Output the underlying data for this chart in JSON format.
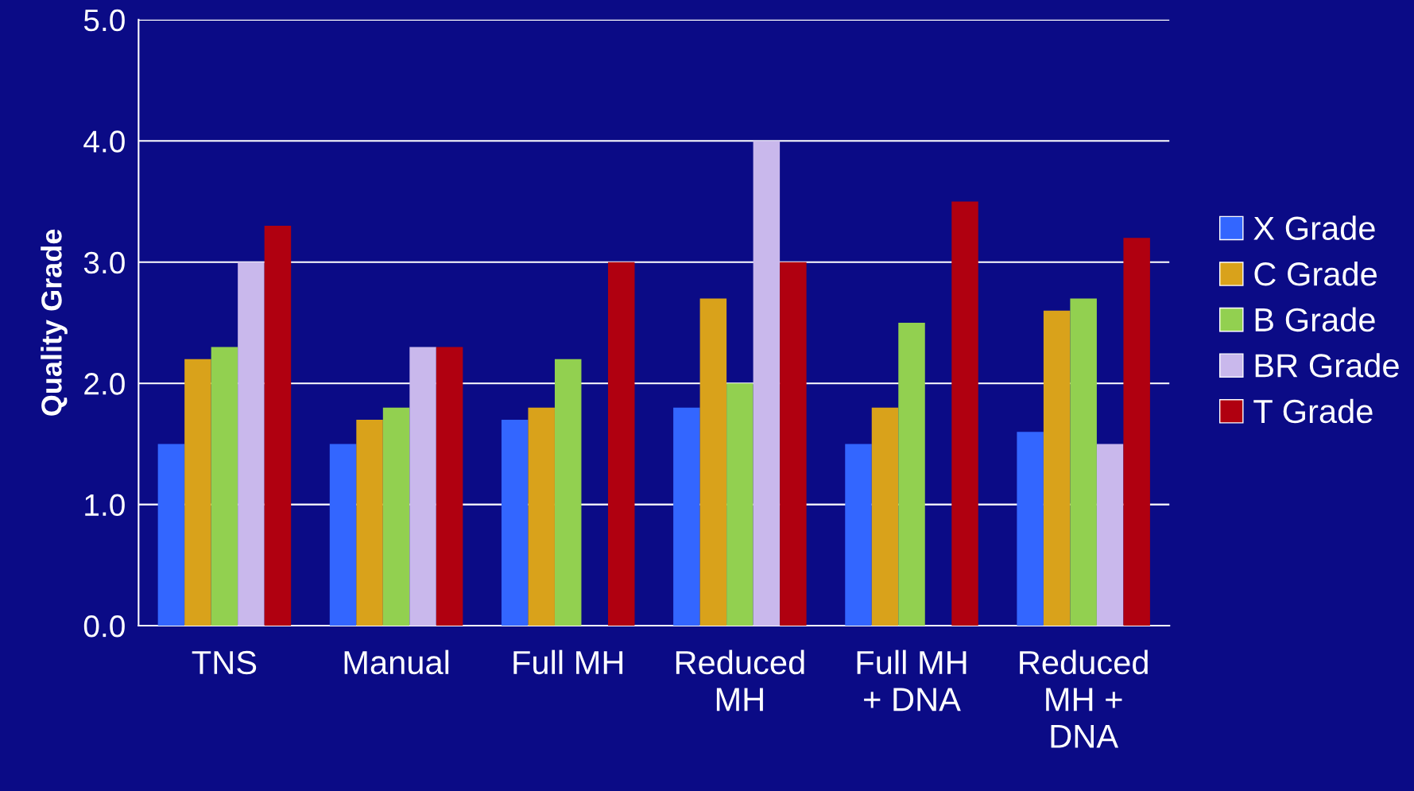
{
  "chart_data": {
    "type": "bar",
    "ylabel": "Quality Grade",
    "categories": [
      "TNS",
      "Manual",
      "Full MH",
      "Reduced\nMH",
      "Full MH\n+ DNA",
      "Reduced\nMH +\nDNA"
    ],
    "series": [
      {
        "name": "X Grade",
        "color": "#3366ff",
        "values": [
          1.5,
          1.5,
          1.7,
          1.8,
          1.5,
          1.6
        ]
      },
      {
        "name": "C Grade",
        "color": "#d9a21b",
        "values": [
          2.2,
          1.7,
          1.8,
          2.7,
          1.8,
          2.6
        ]
      },
      {
        "name": "B Grade",
        "color": "#92d050",
        "values": [
          2.3,
          1.8,
          2.2,
          2.0,
          2.5,
          2.7
        ]
      },
      {
        "name": "BR Grade",
        "color": "#c9b8ec",
        "values": [
          3.0,
          2.3,
          null,
          4.0,
          null,
          1.5
        ]
      },
      {
        "name": "T Grade",
        "color": "#b00010",
        "values": [
          3.3,
          2.3,
          3.0,
          3.0,
          3.5,
          3.2
        ]
      }
    ],
    "ylim": [
      0,
      5
    ],
    "yticks": [
      {
        "value": 0,
        "label": "0.0"
      },
      {
        "value": 1,
        "label": "1.0"
      },
      {
        "value": 2,
        "label": "2.0"
      },
      {
        "value": 3,
        "label": "3.0"
      },
      {
        "value": 4,
        "label": "4.0"
      },
      {
        "value": 5,
        "label": "5.0"
      }
    ],
    "grid": "y",
    "legend": "right"
  }
}
